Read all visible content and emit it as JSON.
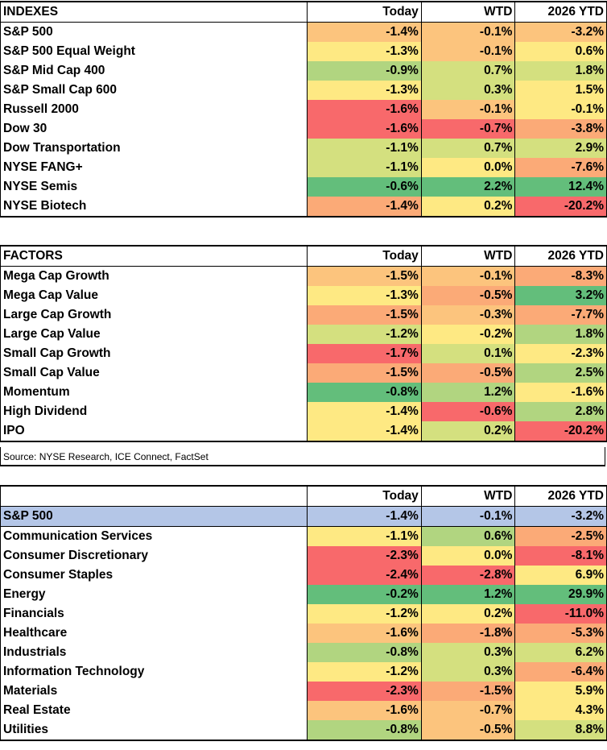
{
  "colors": {
    "red": "#f8696b",
    "orange": "#fbaa77",
    "yellow": "#fee983",
    "lightgreen": "#b1d580",
    "green": "#63be7b",
    "highlight": "#b4c6e7"
  },
  "tables": [
    {
      "headers": [
        "INDEXES",
        "Today",
        "WTD",
        "2026 YTD"
      ],
      "rows": [
        {
          "name": "S&P 500",
          "today": "-1.4%",
          "wtd": "-0.1%",
          "ytd": "-3.2%"
        },
        {
          "name": "S&P 500 Equal Weight",
          "today": "-1.3%",
          "wtd": "-0.1%",
          "ytd": "0.6%"
        },
        {
          "name": "S&P Mid Cap 400",
          "today": "-0.9%",
          "wtd": "0.7%",
          "ytd": "1.8%"
        },
        {
          "name": "S&P Small Cap 600",
          "today": "-1.3%",
          "wtd": "0.3%",
          "ytd": "1.5%"
        },
        {
          "name": "Russell 2000",
          "today": "-1.6%",
          "wtd": "-0.1%",
          "ytd": "-0.1%"
        },
        {
          "name": "Dow 30",
          "today": "-1.6%",
          "wtd": "-0.7%",
          "ytd": "-3.8%"
        },
        {
          "name": "Dow Transportation",
          "today": "-1.1%",
          "wtd": "0.7%",
          "ytd": "2.9%"
        },
        {
          "name": "NYSE FANG+",
          "today": "-1.1%",
          "wtd": "0.0%",
          "ytd": "-7.6%"
        },
        {
          "name": "NYSE Semis",
          "today": "-0.6%",
          "wtd": "2.2%",
          "ytd": "12.4%"
        },
        {
          "name": "NYSE Biotech",
          "today": "-1.4%",
          "wtd": "0.2%",
          "ytd": "-20.2%"
        }
      ]
    },
    {
      "headers": [
        "FACTORS",
        "Today",
        "WTD",
        "2026 YTD"
      ],
      "rows": [
        {
          "name": "Mega Cap Growth",
          "today": "-1.5%",
          "wtd": "-0.1%",
          "ytd": "-8.3%"
        },
        {
          "name": "Mega Cap Value",
          "today": "-1.3%",
          "wtd": "-0.5%",
          "ytd": "3.2%"
        },
        {
          "name": "Large Cap Growth",
          "today": "-1.5%",
          "wtd": "-0.3%",
          "ytd": "-7.7%"
        },
        {
          "name": "Large Cap Value",
          "today": "-1.2%",
          "wtd": "-0.2%",
          "ytd": "1.8%"
        },
        {
          "name": "Small Cap Growth",
          "today": "-1.7%",
          "wtd": "0.1%",
          "ytd": "-2.3%"
        },
        {
          "name": "Small Cap Value",
          "today": "-1.5%",
          "wtd": "-0.5%",
          "ytd": "2.5%"
        },
        {
          "name": "Momentum",
          "today": "-0.8%",
          "wtd": "1.2%",
          "ytd": "-1.6%"
        },
        {
          "name": "High Dividend",
          "today": "-1.4%",
          "wtd": "-0.6%",
          "ytd": "2.8%"
        },
        {
          "name": "IPO",
          "today": "-1.4%",
          "wtd": "0.2%",
          "ytd": "-20.2%"
        }
      ]
    },
    {
      "headers": [
        "",
        "Today",
        "WTD",
        "2026 YTD"
      ],
      "rows": [
        {
          "name": "S&P 500",
          "today": "-1.4%",
          "wtd": "-0.1%",
          "ytd": "-3.2%"
        },
        {
          "name": "Communication Services",
          "today": "-1.1%",
          "wtd": "0.6%",
          "ytd": "-2.5%"
        },
        {
          "name": "Consumer Discretionary",
          "today": "-2.3%",
          "wtd": "0.0%",
          "ytd": "-8.1%"
        },
        {
          "name": "Consumer Staples",
          "today": "-2.4%",
          "wtd": "-2.8%",
          "ytd": "6.9%"
        },
        {
          "name": "Energy",
          "today": "-0.2%",
          "wtd": "1.2%",
          "ytd": "29.9%"
        },
        {
          "name": "Financials",
          "today": "-1.2%",
          "wtd": "0.2%",
          "ytd": "-11.0%"
        },
        {
          "name": "Healthcare",
          "today": "-1.6%",
          "wtd": "-1.8%",
          "ytd": "-5.3%"
        },
        {
          "name": "Industrials",
          "today": "-0.8%",
          "wtd": "0.3%",
          "ytd": "6.2%"
        },
        {
          "name": "Information Technology",
          "today": "-1.2%",
          "wtd": "0.3%",
          "ytd": "-6.4%"
        },
        {
          "name": "Materials",
          "today": "-2.3%",
          "wtd": "-1.5%",
          "ytd": "5.9%"
        },
        {
          "name": "Real Estate",
          "today": "-1.6%",
          "wtd": "-0.7%",
          "ytd": "4.3%"
        },
        {
          "name": "Utilities",
          "today": "-0.8%",
          "wtd": "-0.5%",
          "ytd": "8.8%"
        }
      ]
    }
  ],
  "source": "Source: NYSE Research, ICE Connect, FactSet"
}
